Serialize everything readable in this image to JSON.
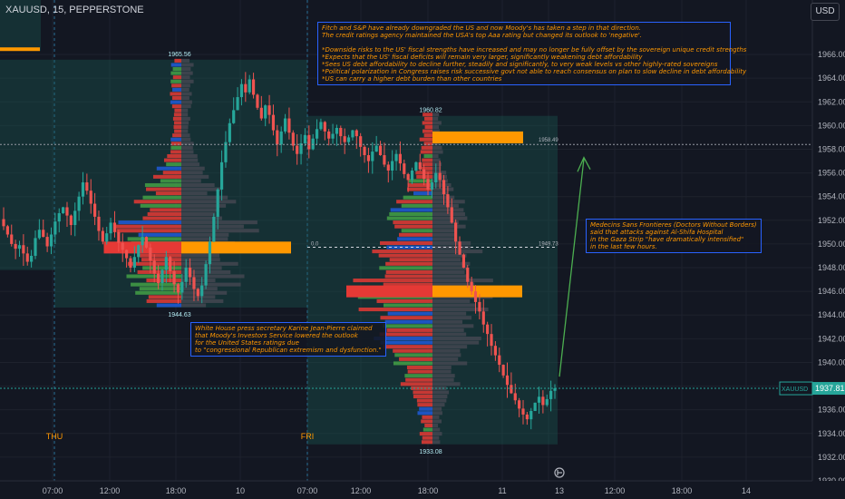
{
  "header": {
    "symbol": "XAUUSD, 15, PEPPERSTONE",
    "currency": "USD"
  },
  "colors": {
    "background": "#131722",
    "up": "#26a69a",
    "down": "#ef5350",
    "poc": "#ff9800",
    "vp_red": "#e53935",
    "vp_green": "#43a047",
    "vp_blue": "#1e5bd9",
    "vp_gray": "#434651",
    "note_border": "#2962ff",
    "note_text": "#ff9800",
    "axis_text": "#b2b5be",
    "arrow": "#4caf50"
  },
  "y_axis": {
    "min": 1930,
    "max": 1967,
    "ticks": [
      "1966.00",
      "1964.00",
      "1962.00",
      "1960.00",
      "1958.00",
      "1956.00",
      "1954.00",
      "1952.00",
      "1950.00",
      "1948.00",
      "1946.00",
      "1944.00",
      "1942.00",
      "1940.00",
      "1938.00",
      "1936.00",
      "1934.00",
      "1932.00",
      "1930.00"
    ]
  },
  "x_axis": {
    "ticks": [
      "07:00",
      "12:00",
      "18:00",
      "10",
      "07:00",
      "12:00",
      "18:00",
      "11",
      "12:00",
      "18:00",
      "13",
      "12:00",
      "18:00",
      "14"
    ]
  },
  "price_label": {
    "name": "XAUUSD",
    "value": "1937.81"
  },
  "crosshair_price": 1958.4,
  "profiles": [
    {
      "high_label": "1965.56",
      "low_label": "1944.63",
      "day_label": "THU",
      "poc": 1949.7
    },
    {
      "high_label": "1960.82",
      "low_label": "1933.08",
      "day_label": "FRI",
      "poc": 1946.0,
      "line1_left": "0.0",
      "line1_right": "1949.73",
      "line2_right": "1958.49"
    }
  ],
  "notes": {
    "top": [
      "Fitch and S&P have already downgraded the US and now Moody's has taken a step in that direction.",
      "The credit ratings agency maintained the USA's top Aaa rating but changed its outlook to 'negative'.",
      "",
      "*Downside risks to the US' fiscal strengths have increased and may no longer be fully offset by the sovereign unique credit strengths",
      "*Expects that the US' fiscal deficits will remain very larger, significantly weakening debt affordability",
      "*Sees US debt affordability to decline further, steadily and significantly, to very weak levels vs other highly-rated sovereigns",
      "*Political polarization in Congress raises risk successive govt not able to reach consensus on plan to slow decline in debt affordability",
      "*US can carry a higher debt burden than other countries"
    ],
    "white_house": [
      "White House press secretary Karine Jean-Pierre claimed",
      "that Moody's Investors Service lowered the outlook",
      "for the United States ratings due",
      "to \"congressional Republican extremism and dysfunction.\""
    ],
    "msf": [
      "Medecins Sans Frontieres (Doctors Without Borders)",
      "said that attacks against Al-Shifa Hospital",
      "in the Gaza Strip \"have dramatically intensified\"",
      "in the last few hours."
    ]
  },
  "chart_data": {
    "type": "candlestick",
    "symbol": "XAUUSD",
    "interval": "15",
    "ylim": [
      1930,
      1967
    ],
    "last_price": 1937.81,
    "session_profiles": [
      {
        "day": "THU",
        "high": 1965.56,
        "low": 1944.63,
        "poc": 1949.7
      },
      {
        "day": "FRI",
        "high": 1960.82,
        "low": 1933.08,
        "poc": 1946.0
      }
    ],
    "closes": [
      1951.5,
      1950.8,
      1950.0,
      1949.6,
      1949.9,
      1949.2,
      1948.5,
      1949.0,
      1950.5,
      1951.2,
      1950.6,
      1949.8,
      1950.8,
      1951.9,
      1952.6,
      1953.1,
      1952.4,
      1951.6,
      1952.8,
      1954.0,
      1955.2,
      1954.5,
      1953.4,
      1952.3,
      1951.1,
      1950.2,
      1950.9,
      1951.8,
      1951.0,
      1950.1,
      1949.5,
      1948.8,
      1948.0,
      1948.9,
      1949.9,
      1950.6,
      1949.7,
      1948.6,
      1947.5,
      1946.7,
      1947.8,
      1948.9,
      1947.7,
      1946.6,
      1945.9,
      1946.8,
      1948.0,
      1947.2,
      1946.2,
      1945.6,
      1946.5,
      1948.3,
      1950.2,
      1952.3,
      1954.6,
      1956.9,
      1958.6,
      1960.2,
      1961.3,
      1962.4,
      1963.5,
      1962.8,
      1963.9,
      1962.6,
      1961.5,
      1960.6,
      1961.7,
      1960.9,
      1959.6,
      1958.4,
      1959.5,
      1960.6,
      1959.4,
      1958.3,
      1957.6,
      1958.5,
      1959.2,
      1958.0,
      1958.9,
      1959.7,
      1960.3,
      1959.5,
      1958.9,
      1959.3,
      1959.8,
      1959.1,
      1958.6,
      1959.0,
      1959.6,
      1959.1,
      1958.2,
      1957.5,
      1957.0,
      1957.8,
      1958.3,
      1957.5,
      1956.7,
      1956.2,
      1957.0,
      1957.6,
      1956.8,
      1955.9,
      1955.4,
      1956.2,
      1956.9,
      1956.3,
      1955.5,
      1954.6,
      1955.2,
      1956.0,
      1955.4,
      1954.2,
      1953.1,
      1951.8,
      1950.2,
      1949.1,
      1948.0,
      1946.8,
      1946.0,
      1945.1,
      1944.3,
      1943.2,
      1942.4,
      1941.4,
      1940.6,
      1939.8,
      1938.9,
      1938.1,
      1937.4,
      1936.8,
      1936.1,
      1935.6,
      1935.2,
      1935.9,
      1936.6,
      1937.1,
      1936.4,
      1936.9,
      1937.6,
      1937.81
    ]
  }
}
